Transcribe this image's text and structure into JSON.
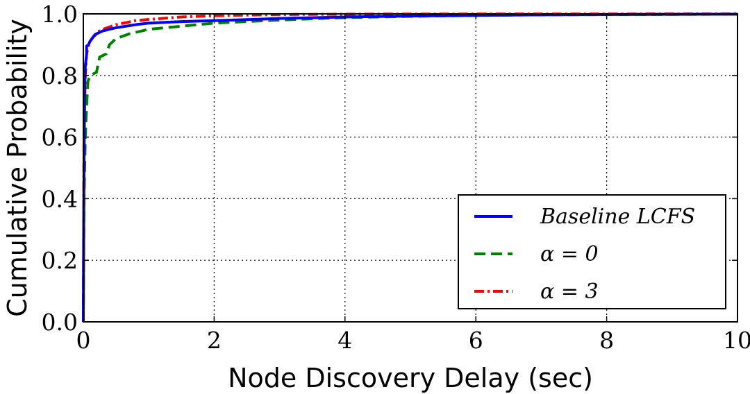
{
  "chart_data": {
    "type": "line",
    "title": "",
    "xlabel": "Node Discovery Delay (sec)",
    "ylabel": "Cumulative Probability",
    "xlim": [
      0,
      10
    ],
    "ylim": [
      0.0,
      1.0
    ],
    "x_ticks": [
      "0",
      "2",
      "4",
      "6",
      "8",
      "10"
    ],
    "y_ticks": [
      "0.0",
      "0.2",
      "0.4",
      "0.6",
      "0.8",
      "1.0"
    ],
    "grid": true,
    "legend_position": "lower-right",
    "series": [
      {
        "name": "Baseline LCFS",
        "color": "#0000ff",
        "style": "solid",
        "x": [
          0,
          0.01,
          0.02,
          0.03,
          0.05,
          0.05,
          0.08,
          0.1,
          0.15,
          0.2,
          0.3,
          0.5,
          0.8,
          1.0,
          1.5,
          2.0,
          3.0,
          4.0,
          5.0,
          6.0,
          7.0,
          8.0,
          10.0
        ],
        "y": [
          0.0,
          0.5,
          0.75,
          0.83,
          0.87,
          0.895,
          0.9,
          0.91,
          0.925,
          0.935,
          0.945,
          0.955,
          0.965,
          0.97,
          0.975,
          0.978,
          0.985,
          0.99,
          0.993,
          0.995,
          0.997,
          0.998,
          0.999
        ]
      },
      {
        "name": "α = 0",
        "color": "#008000",
        "style": "dashed",
        "x": [
          0,
          0.01,
          0.03,
          0.05,
          0.07,
          0.1,
          0.15,
          0.2,
          0.25,
          0.3,
          0.35,
          0.4,
          0.5,
          0.7,
          1.0,
          1.5,
          2.0,
          3.0,
          4.0,
          5.0,
          6.0,
          7.0,
          10.0
        ],
        "y": [
          0.0,
          0.4,
          0.6,
          0.7,
          0.78,
          0.8,
          0.805,
          0.81,
          0.86,
          0.865,
          0.87,
          0.9,
          0.92,
          0.935,
          0.95,
          0.96,
          0.97,
          0.98,
          0.988,
          0.992,
          0.995,
          0.997,
          0.999
        ]
      },
      {
        "name": "α = 3",
        "color": "#ff0000",
        "style": "dashdot",
        "x": [
          0,
          0.01,
          0.03,
          0.05,
          0.08,
          0.1,
          0.15,
          0.2,
          0.3,
          0.5,
          0.8,
          1.0,
          1.5,
          2.0,
          2.5,
          3.0,
          4.0,
          5.0,
          10.0
        ],
        "y": [
          0.0,
          0.6,
          0.8,
          0.87,
          0.9,
          0.91,
          0.925,
          0.94,
          0.95,
          0.965,
          0.978,
          0.982,
          0.99,
          0.994,
          0.996,
          0.998,
          0.999,
          0.9995,
          1.0
        ]
      }
    ]
  }
}
